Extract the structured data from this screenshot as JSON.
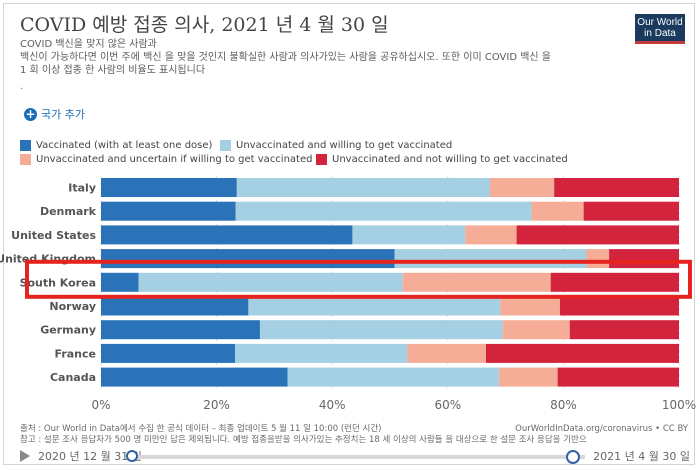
{
  "header": {
    "title": "COVID 예방 접종 의사, 2021 년 4 월 30 일",
    "subtitle_line1": "COVID 백신을 맞지 않은 사람과",
    "subtitle_line2": "백신이 가능하다면 이번 주에 백신 을 맞을 것인지 불확실한 사람과 의사가있는 사람을 공유하십시오. 또한 이미 COVID 백신 을",
    "subtitle_line3": "1 회 이상 접종 한 사람의 비율도 표시됩니다",
    "dot": ".",
    "logo_line1": "Our World",
    "logo_line2": "in Data"
  },
  "controls": {
    "add_country_label": "국가 추가",
    "plus_icon": "+"
  },
  "chart_data": {
    "type": "bar",
    "orientation": "horizontal",
    "stacked": true,
    "categories": [
      "Italy",
      "Denmark",
      "United States",
      "United Kingdom",
      "South Korea",
      "Norway",
      "Germany",
      "France",
      "Canada"
    ],
    "series": [
      {
        "name": "Vaccinated (with at least one dose)",
        "color": "#2a73b8",
        "values": [
          23.5,
          23.3,
          43.5,
          50.8,
          6.5,
          25.5,
          27.5,
          23.2,
          32.3
        ]
      },
      {
        "name": "Unvaccinated and willing to get vaccinated",
        "color": "#a5cfe3",
        "values": [
          43.8,
          51.2,
          19.5,
          33.2,
          45.7,
          43.6,
          42.0,
          29.8,
          36.6
        ]
      },
      {
        "name": "Unvaccinated and uncertain if willing to get vaccinated",
        "color": "#f5ad97",
        "values": [
          11.1,
          9.0,
          8.9,
          3.9,
          25.6,
          10.3,
          11.6,
          13.6,
          10.1
        ]
      },
      {
        "name": "Unvaccinated and not willing to get vaccinated",
        "color": "#d2253d",
        "values": [
          21.6,
          16.5,
          28.1,
          12.1,
          22.2,
          20.6,
          18.9,
          33.4,
          21.0
        ]
      }
    ],
    "x_ticks": [
      "0%",
      "20%",
      "40%",
      "60%",
      "80%",
      "100%"
    ],
    "xlim": [
      0,
      100
    ],
    "highlighted_category": "South Korea",
    "highlight_color": "#e5241f",
    "grid": true,
    "legend_position": "top"
  },
  "footer": {
    "source": "출처 : Our World in Data에서 수집 한 공식 데이터 – 최종 업데이트 5 월 11 일 10:00 (런던 시간)",
    "source_url": "OurWorldInData.org/coronavirus • CC BY",
    "note": "참고 : 설문 조사 응답자가 500 명 미만인 답은 제외됩니다. 예방 접종을받을 의사가있는 추정치는 18 세 이상의 사람들 을 대상으로 한 설문 조사 응답을 기반으"
  },
  "timeline": {
    "start_label": "2020 년 12 월 31 일",
    "end_label": "2021 년 4 월 30 일"
  }
}
